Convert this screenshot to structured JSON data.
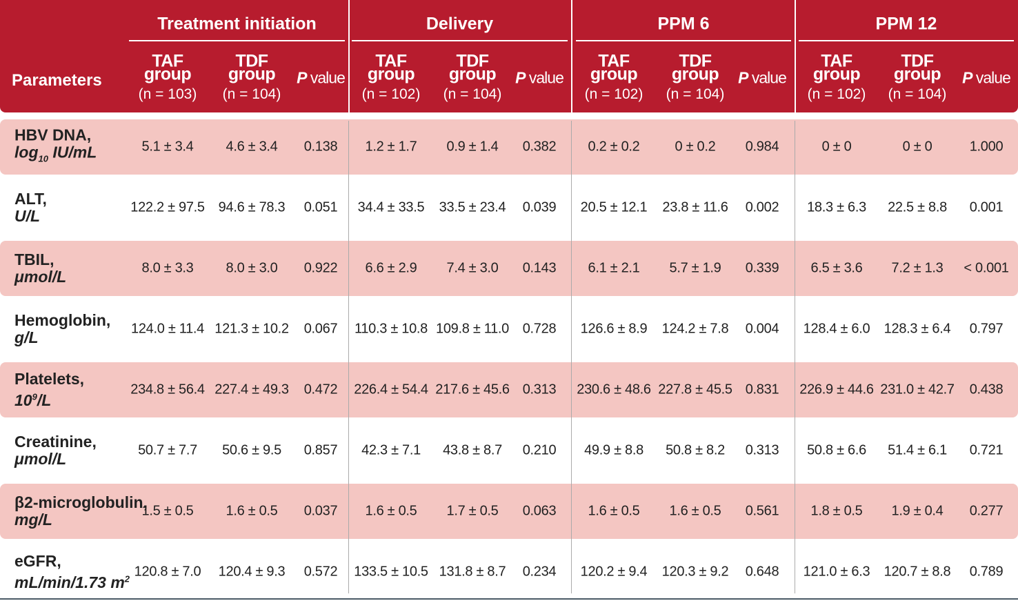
{
  "table": {
    "row_header": "Parameters",
    "col_labels": {
      "taf": "TAF",
      "tdf": "TDF",
      "group": "group",
      "p": "P",
      "value": "value"
    },
    "groups": [
      {
        "title": "Treatment initiation",
        "taf_n": "(n = 103)",
        "tdf_n": "(n  = 104)"
      },
      {
        "title": "Delivery",
        "taf_n": "(n = 102)",
        "tdf_n": "(n  = 104)"
      },
      {
        "title": "PPM 6",
        "taf_n": "(n = 102)",
        "tdf_n": "(n  = 104)"
      },
      {
        "title": "PPM 12",
        "taf_n": "(n = 102)",
        "tdf_n": "(n  = 104)"
      }
    ],
    "rows": [
      {
        "name": "HBV DNA,",
        "unit": [
          {
            "t": "log"
          },
          {
            "t": "10",
            "pos": "sub"
          },
          {
            "t": " IU/mL"
          }
        ],
        "cells": [
          "5.1 ± 3.4",
          "4.6 ± 3.4",
          "0.138",
          "1.2 ± 1.7",
          "0.9 ± 1.4",
          "0.382",
          "0.2 ± 0.2",
          "0 ± 0.2",
          "0.984",
          "0 ± 0",
          "0 ± 0",
          "1.000"
        ]
      },
      {
        "name": "ALT,",
        "unit": [
          {
            "t": "U/L"
          }
        ],
        "cells": [
          "122.2 ± 97.5",
          "94.6 ± 78.3",
          "0.051",
          "34.4 ± 33.5",
          "33.5 ± 23.4",
          "0.039",
          "20.5 ± 12.1",
          "23.8 ± 11.6",
          "0.002",
          "18.3 ± 6.3",
          "22.5 ± 8.8",
          "0.001"
        ]
      },
      {
        "name": "TBIL,",
        "unit": [
          {
            "t": "μmol/L"
          }
        ],
        "cells": [
          "8.0 ± 3.3",
          "8.0 ± 3.0",
          "0.922",
          "6.6 ± 2.9",
          "7.4 ± 3.0",
          "0.143",
          "6.1 ± 2.1",
          "5.7 ± 1.9",
          "0.339",
          "6.5 ± 3.6",
          "7.2 ± 1.3",
          "< 0.001"
        ]
      },
      {
        "name": "Hemoglobin,",
        "unit": [
          {
            "t": "g/L"
          }
        ],
        "cells": [
          "124.0 ± 11.4",
          "121.3 ± 10.2",
          "0.067",
          "110.3 ± 10.8",
          "109.8 ± 11.0",
          "0.728",
          "126.6 ± 8.9",
          "124.2 ± 7.8",
          "0.004",
          "128.4 ± 6.0",
          "128.3 ± 6.4",
          "0.797"
        ]
      },
      {
        "name": "Platelets,",
        "unit": [
          {
            "t": "10"
          },
          {
            "t": "9",
            "pos": "sup"
          },
          {
            "t": "/L"
          }
        ],
        "cells": [
          "234.8 ± 56.4",
          "227.4 ± 49.3",
          "0.472",
          "226.4 ± 54.4",
          "217.6 ± 45.6",
          "0.313",
          "230.6 ± 48.6",
          "227.8 ± 45.5",
          "0.831",
          "226.9 ± 44.6",
          "231.0 ± 42.7",
          "0.438"
        ]
      },
      {
        "name": "Creatinine,",
        "unit": [
          {
            "t": "μmol/L"
          }
        ],
        "cells": [
          "50.7 ± 7.7",
          "50.6 ± 9.5",
          "0.857",
          "42.3 ± 7.1",
          "43.8 ± 8.7",
          "0.210",
          "49.9 ± 8.8",
          "50.8 ± 8.2",
          "0.313",
          "50.8 ± 6.6",
          "51.4 ± 6.1",
          "0.721"
        ]
      },
      {
        "name": "β2-microglobulin,",
        "unit": [
          {
            "t": "mg/L"
          }
        ],
        "cells": [
          "1.5 ± 0.5",
          "1.6 ± 0.5",
          "0.037",
          "1.6 ± 0.5",
          "1.7 ± 0.5",
          "0.063",
          "1.6 ± 0.5",
          "1.6 ± 0.5",
          "0.561",
          "1.8 ± 0.5",
          "1.9 ± 0.4",
          "0.277"
        ]
      },
      {
        "name": "eGFR,",
        "unit": [
          {
            "t": "mL/min/1.73 m"
          },
          {
            "t": "2",
            "pos": "sup"
          }
        ],
        "cells": [
          "120.8 ± 7.0",
          "120.4 ± 9.3",
          "0.572",
          "133.5 ± 10.5",
          "131.8 ± 8.7",
          "0.234",
          "120.2 ± 9.4",
          "120.3 ± 9.2",
          "0.648",
          "121.0 ± 6.3",
          "120.7 ± 8.8",
          "0.789"
        ]
      }
    ]
  }
}
